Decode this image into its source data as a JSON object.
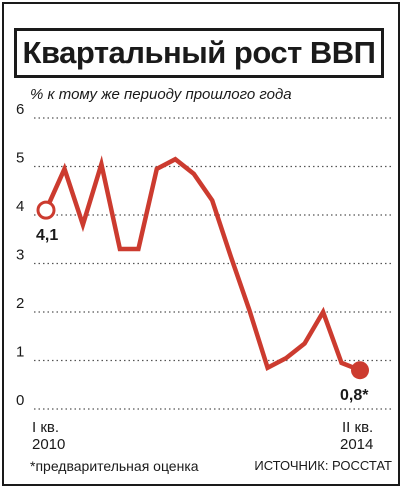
{
  "title": "Квартальный рост ВВП",
  "subtitle": "% к тому же периоду прошлого года",
  "footnote": "*предварительная оценка",
  "source": "ИСТОЧНИК: РОССТАТ",
  "colors": {
    "line": "#cc3b2f",
    "grid": "#555555",
    "text": "#1a1a1a"
  },
  "chart_data": {
    "type": "line",
    "title": "Квартальный рост ВВП",
    "ylabel": "% к тому же периоду прошлого года",
    "ylim": [
      0,
      6
    ],
    "yticks": [
      "0",
      "1",
      "2",
      "3",
      "4",
      "5",
      "6"
    ],
    "grid": "dotted horizontal",
    "x_start_label": [
      "I кв.",
      "2010"
    ],
    "x_end_label": [
      "II кв.",
      "2014"
    ],
    "values": [
      4.1,
      4.95,
      3.8,
      5.05,
      3.3,
      3.3,
      4.95,
      5.15,
      4.85,
      4.3,
      3.15,
      2.05,
      0.85,
      1.05,
      1.35,
      2.0,
      0.95,
      0.8
    ],
    "start_label": "4,1",
    "end_label": "0,8*"
  }
}
